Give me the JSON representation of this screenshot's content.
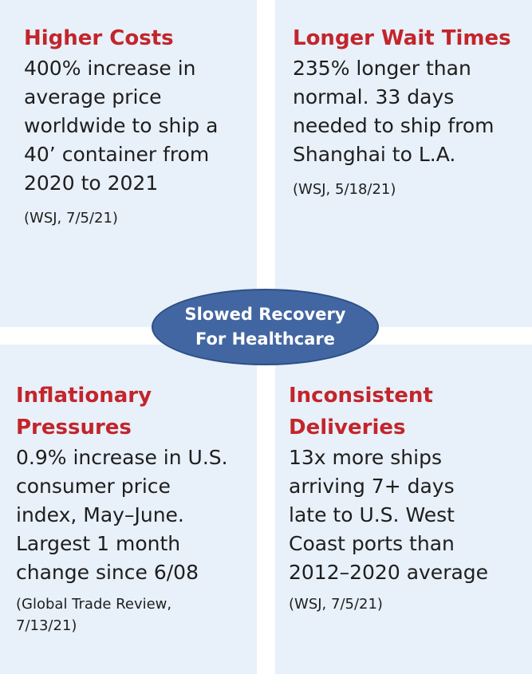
{
  "center": {
    "line1": "Slowed Recovery",
    "line2": "For Healthcare"
  },
  "quadrants": {
    "top_left": {
      "heading": [
        "Higher Costs"
      ],
      "body": [
        "400% increase in",
        "average price",
        "worldwide to ship a",
        "40’ container from",
        "2020 to 2021"
      ],
      "source": [
        "(WSJ, 7/5/21)"
      ]
    },
    "top_right": {
      "heading": [
        "Longer Wait Times"
      ],
      "body": [
        "235% longer than",
        "normal. 33 days",
        "needed to ship from",
        "Shanghai to L.A."
      ],
      "source": [
        "(WSJ, 5/18/21)"
      ]
    },
    "bottom_left": {
      "heading": [
        "Inflationary",
        "Pressures"
      ],
      "body": [
        "0.9% increase in U.S.",
        "consumer price",
        "index, May–June.",
        "Largest 1 month",
        "change since 6/08"
      ],
      "source": [
        "(Global Trade Review,",
        "7/13/21)"
      ]
    },
    "bottom_right": {
      "heading": [
        "Inconsistent",
        "Deliveries"
      ],
      "body": [
        "13x more ships",
        "arriving 7+ days",
        "late to U.S. West",
        "Coast ports than",
        "2012–2020 average"
      ],
      "source": [
        "(WSJ, 7/5/21)"
      ]
    }
  },
  "colors": {
    "panel_background": "#e8f0f9",
    "heading": "#c2252b",
    "ellipse_fill": "#4266a1",
    "ellipse_text": "#ffffff"
  }
}
